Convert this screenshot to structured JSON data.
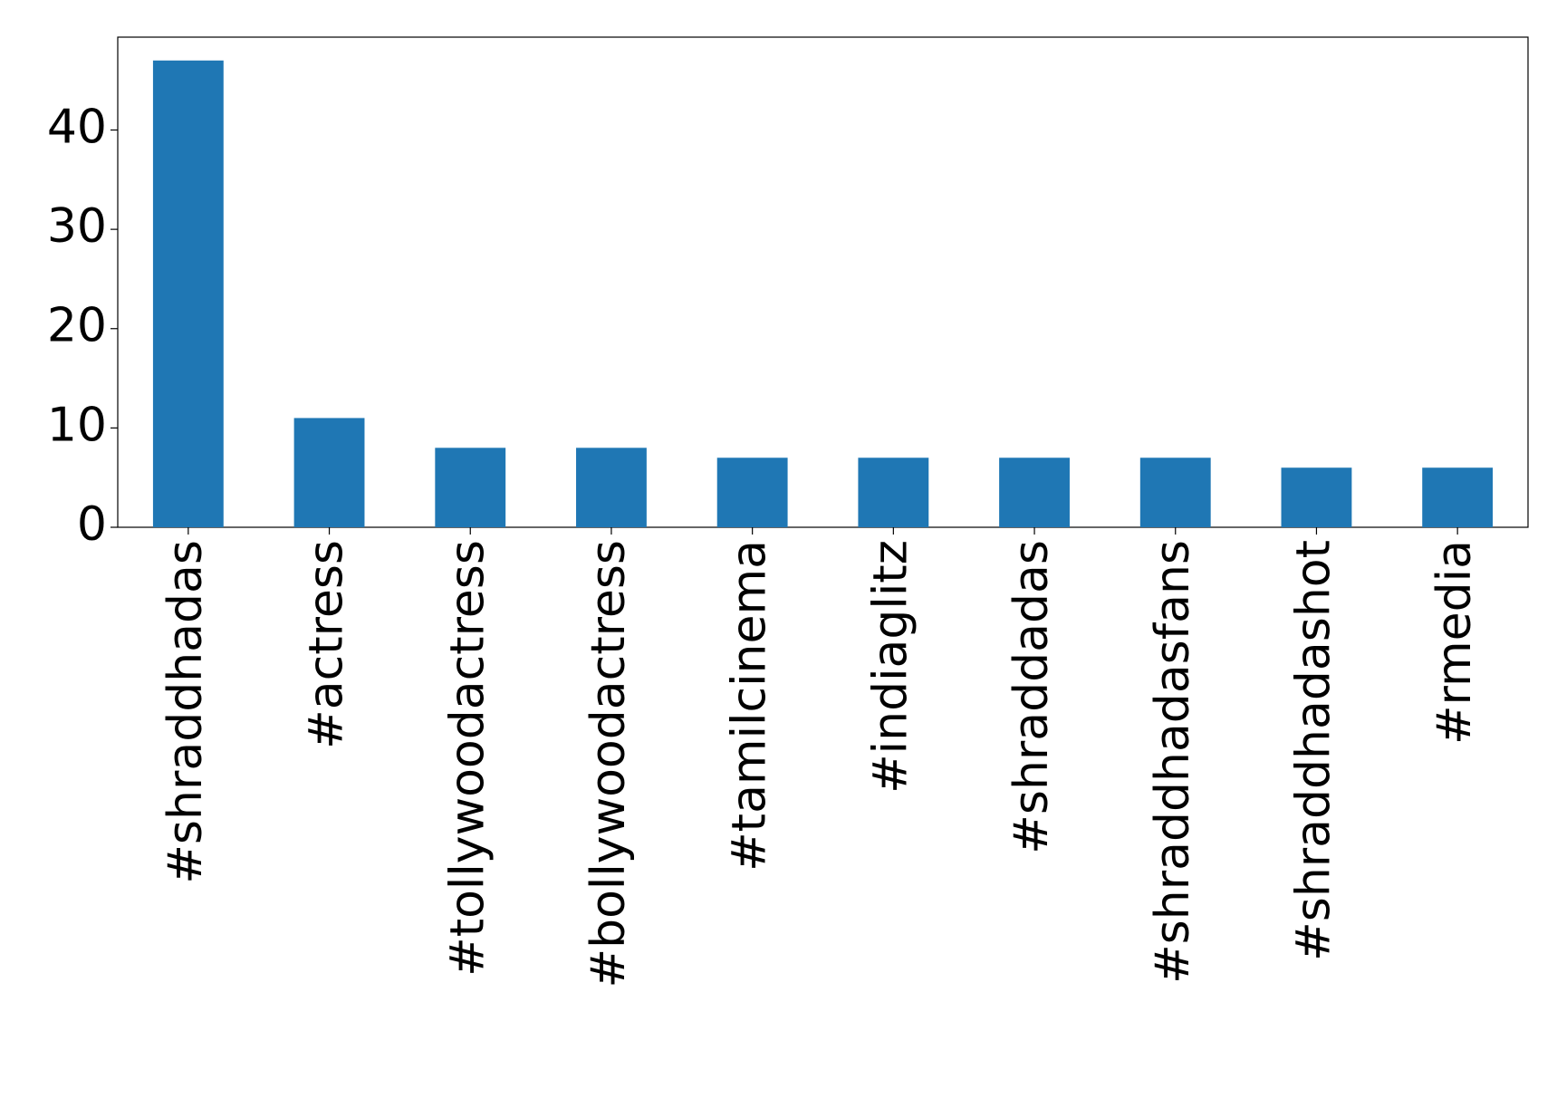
{
  "chart_data": {
    "type": "bar",
    "categories": [
      "#shraddhadas",
      "#actress",
      "#tollywoodactress",
      "#bollywoodactress",
      "#tamilcinema",
      "#indiaglitz",
      "#shraddadas",
      "#shraddhadasfans",
      "#shraddhadashot",
      "#rmedia"
    ],
    "values": [
      47,
      11,
      8,
      8,
      7,
      7,
      7,
      7,
      6,
      6
    ],
    "color": "#1f77b4",
    "ylim": [
      0,
      49.35
    ],
    "yticks": [
      0,
      10,
      20,
      30,
      40
    ],
    "grid": false
  }
}
